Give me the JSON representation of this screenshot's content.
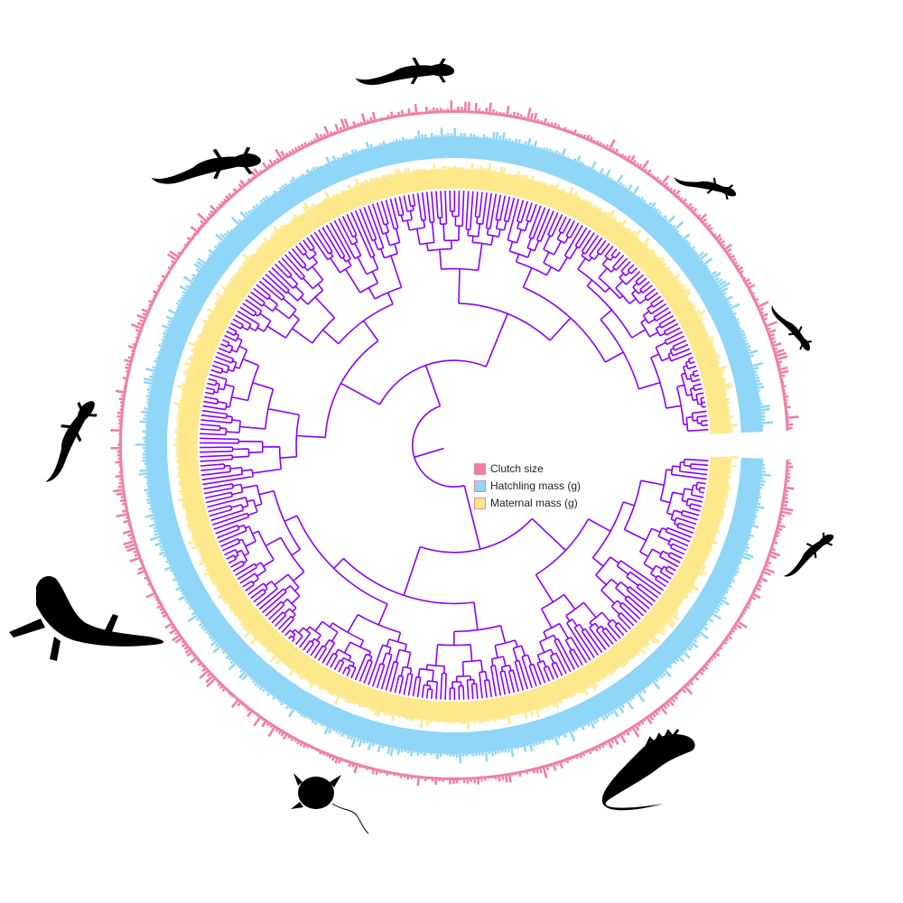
{
  "legend": {
    "items": [
      {
        "label": "Clutch size",
        "color": "#f07fa4"
      },
      {
        "label": "Hatchling mass (g)",
        "color": "#8fd6f7"
      },
      {
        "label": "Maternal mass (g)",
        "color": "#fde98c"
      }
    ]
  },
  "colors": {
    "tree": "#8a00ff",
    "clutch_ring": "#f07fa4",
    "hatchling_ring": "#8fd6f7",
    "maternal_ring": "#fde98c"
  },
  "silhouettes": [
    {
      "name": "lizard-top-silhouette"
    },
    {
      "name": "skink-silhouette"
    },
    {
      "name": "anole-silhouette"
    },
    {
      "name": "gecko-silhouette"
    },
    {
      "name": "climbing-lizard-silhouette"
    },
    {
      "name": "monitor-lizard-silhouette"
    },
    {
      "name": "horned-lizard-silhouette"
    },
    {
      "name": "iguana-silhouette"
    },
    {
      "name": "small-lizard-silhouette"
    }
  ]
}
